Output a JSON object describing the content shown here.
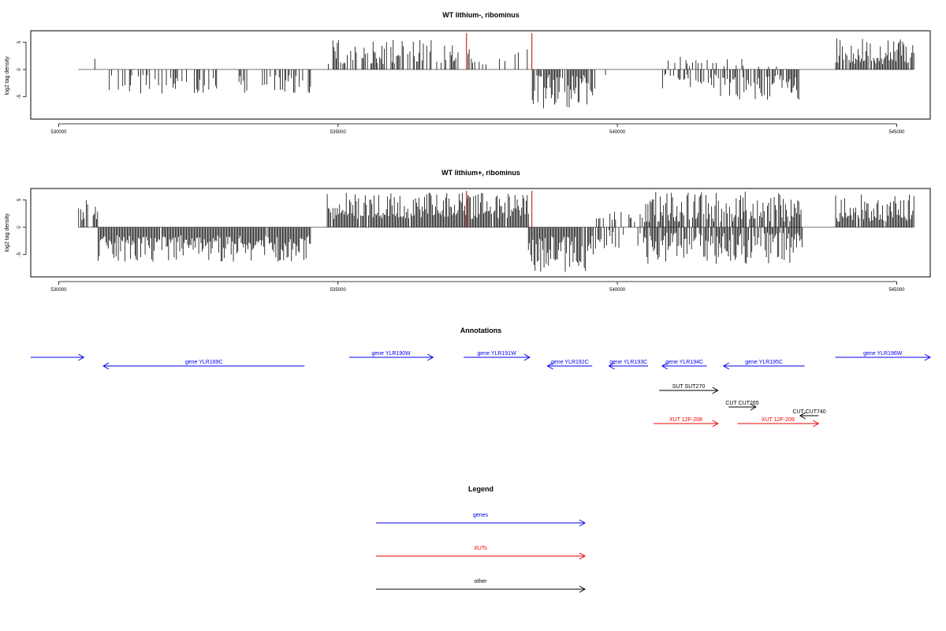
{
  "chart_data": [
    {
      "type": "bar",
      "title": "WT lithium-, ribominus",
      "ylabel": "log2 tag density",
      "xlim": [
        529500,
        545600
      ],
      "ylim": [
        -8.5,
        6.5
      ],
      "xticks": [
        530000,
        535000,
        540000,
        545000
      ],
      "xtick_labels": [
        "530000",
        "535000",
        "540000",
        "545000"
      ],
      "yticks": [
        -5,
        0,
        5
      ],
      "ytick_labels": [
        "-5",
        "0",
        "5"
      ],
      "baseline_color": "#888888",
      "bar_color": "#000000",
      "highlight_color": "#cc0000",
      "highlight_bars": [
        {
          "x": 537300,
          "y": 6.5
        },
        {
          "x": 538470,
          "y": 6.5
        }
      ],
      "segments": [
        {
          "start": 530400,
          "end": 530700,
          "sign": 1,
          "min": 1.0,
          "max": 3.8,
          "density": 0.1
        },
        {
          "start": 530900,
          "end": 534500,
          "sign": -1,
          "min": 1.0,
          "max": 4.5,
          "density": 0.35
        },
        {
          "start": 534800,
          "end": 537100,
          "sign": 1,
          "min": 1.0,
          "max": 5.5,
          "density": 0.55
        },
        {
          "start": 537100,
          "end": 538400,
          "sign": 1,
          "min": 0.8,
          "max": 4.0,
          "density": 0.2
        },
        {
          "start": 538450,
          "end": 539600,
          "sign": -1,
          "min": 1.0,
          "max": 7.2,
          "density": 0.9
        },
        {
          "start": 539600,
          "end": 540200,
          "sign": -1,
          "min": 0.5,
          "max": 1.5,
          "density": 0.05
        },
        {
          "start": 540800,
          "end": 541800,
          "sign": 1,
          "min": 0.5,
          "max": 2.5,
          "density": 0.2
        },
        {
          "start": 540800,
          "end": 541800,
          "sign": -1,
          "min": 0.8,
          "max": 3.5,
          "density": 0.45
        },
        {
          "start": 541800,
          "end": 543300,
          "sign": -1,
          "min": 1.0,
          "max": 5.6,
          "density": 0.6
        },
        {
          "start": 541900,
          "end": 543000,
          "sign": 1,
          "min": 0.5,
          "max": 2.6,
          "density": 0.15
        },
        {
          "start": 543900,
          "end": 545300,
          "sign": 1,
          "min": 1.0,
          "max": 5.7,
          "density": 0.9
        }
      ]
    },
    {
      "type": "bar",
      "title": "WT lithium+, ribominus",
      "ylabel": "log2 tag density",
      "xlim": [
        529500,
        545600
      ],
      "ylim": [
        -8.5,
        6.5
      ],
      "xticks": [
        530000,
        535000,
        540000,
        545000
      ],
      "xtick_labels": [
        "530000",
        "535000",
        "540000",
        "545000"
      ],
      "yticks": [
        -5,
        0,
        5
      ],
      "ytick_labels": [
        "-5",
        "0",
        "5"
      ],
      "baseline_color": "#888888",
      "bar_color": "#000000",
      "highlight_color": "#cc0000",
      "highlight_bars": [
        {
          "x": 537300,
          "y": 6.5
        },
        {
          "x": 538470,
          "y": 6.5
        }
      ],
      "segments": [
        {
          "start": 530350,
          "end": 530700,
          "sign": 1,
          "min": 1.0,
          "max": 5.0,
          "density": 0.4
        },
        {
          "start": 530700,
          "end": 534500,
          "sign": -1,
          "min": 1.5,
          "max": 6.3,
          "density": 0.95
        },
        {
          "start": 534800,
          "end": 538400,
          "sign": 1,
          "min": 1.5,
          "max": 6.3,
          "density": 0.95
        },
        {
          "start": 538400,
          "end": 539600,
          "sign": -1,
          "min": 1.5,
          "max": 8.2,
          "density": 0.95
        },
        {
          "start": 539600,
          "end": 540500,
          "sign": -1,
          "min": 0.5,
          "max": 4.0,
          "density": 0.45
        },
        {
          "start": 539600,
          "end": 540500,
          "sign": 1,
          "min": 0.5,
          "max": 3.0,
          "density": 0.35
        },
        {
          "start": 540500,
          "end": 543300,
          "sign": -1,
          "min": 1.0,
          "max": 6.8,
          "density": 0.85
        },
        {
          "start": 540500,
          "end": 543300,
          "sign": 1,
          "min": 1.0,
          "max": 6.5,
          "density": 0.8
        },
        {
          "start": 543900,
          "end": 545300,
          "sign": 1,
          "min": 1.0,
          "max": 6.0,
          "density": 0.95
        }
      ]
    }
  ],
  "annotations": {
    "title": "Annotations",
    "xlim": [
      529500,
      545600
    ],
    "features": [
      {
        "label": "",
        "start": 529500,
        "end": 530450,
        "strand": "+",
        "row": 0,
        "color": "#0000ee"
      },
      {
        "label": "gene YLR189C",
        "start": 530800,
        "end": 534400,
        "strand": "-",
        "row": 1,
        "color": "#0000ee"
      },
      {
        "label": "gene YLR190W",
        "start": 535200,
        "end": 536700,
        "strand": "+",
        "row": 0,
        "color": "#0000ee"
      },
      {
        "label": "gene YLR191W",
        "start": 537250,
        "end": 538430,
        "strand": "+",
        "row": 0,
        "color": "#0000ee"
      },
      {
        "label": "gene YLR192C",
        "start": 538750,
        "end": 539550,
        "strand": "-",
        "row": 1,
        "color": "#0000ee"
      },
      {
        "label": "gene YLR193C",
        "start": 539850,
        "end": 540550,
        "strand": "-",
        "row": 1,
        "color": "#0000ee"
      },
      {
        "label": "gene YLR194C",
        "start": 540800,
        "end": 541600,
        "strand": "-",
        "row": 1,
        "color": "#0000ee"
      },
      {
        "label": "gene YLR195C",
        "start": 541900,
        "end": 543350,
        "strand": "-",
        "row": 1,
        "color": "#0000ee"
      },
      {
        "label": "gene YLR196W",
        "start": 543900,
        "end": 545600,
        "strand": "+",
        "row": 0,
        "color": "#0000ee"
      },
      {
        "label": "SUT SUT270",
        "start": 540750,
        "end": 541800,
        "strand": "+",
        "row": 3,
        "color": "#000000"
      },
      {
        "label": "CUT CUT265",
        "start": 541990,
        "end": 542480,
        "strand": "+",
        "row": 5,
        "color": "#000000"
      },
      {
        "label": "CUT CUT740",
        "start": 543270,
        "end": 543600,
        "strand": "-",
        "row": 6,
        "color": "#000000"
      },
      {
        "label": "XUT 12F-208",
        "start": 540650,
        "end": 541800,
        "strand": "+",
        "row": 7,
        "color": "#ee0000"
      },
      {
        "label": "XUT 12F-209",
        "start": 542150,
        "end": 543600,
        "strand": "+",
        "row": 7,
        "color": "#ee0000"
      }
    ]
  },
  "legend": {
    "title": "Legend",
    "items": [
      {
        "label": "genes",
        "color": "#0000ee"
      },
      {
        "label": "XUTs",
        "color": "#ee0000"
      },
      {
        "label": "other",
        "color": "#000000"
      }
    ]
  }
}
